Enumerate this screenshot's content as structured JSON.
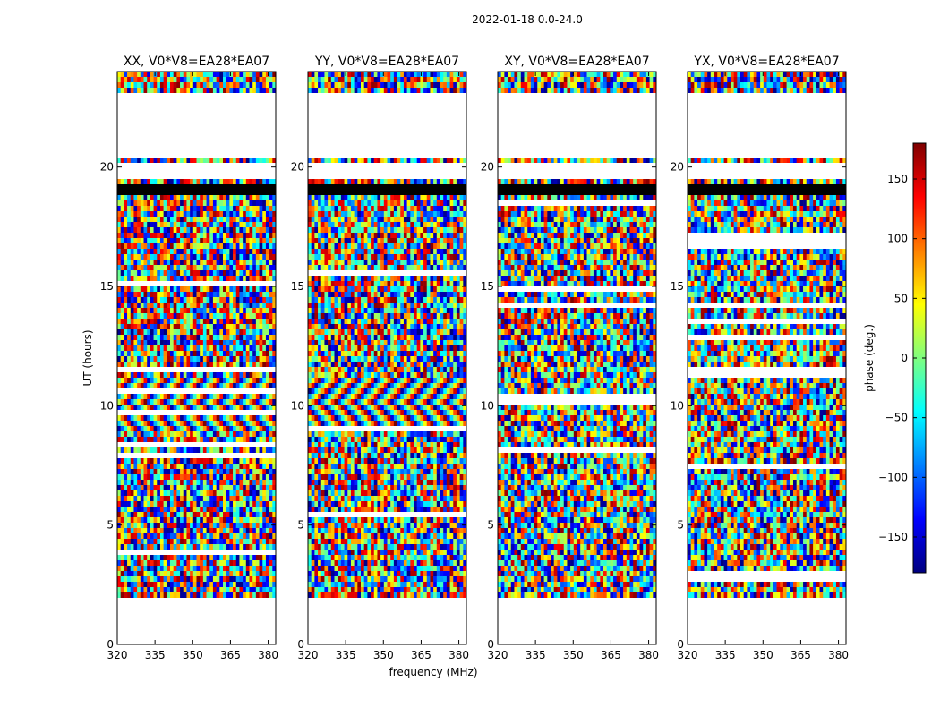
{
  "figure_title": "2022-01-18 0.0-24.0",
  "chart_data": {
    "type": "heatmap",
    "suptitle": "2022-01-18 0.0-24.0",
    "xlabel": "frequency (MHz)",
    "ylabel": "UT (hours)",
    "xlim": [
      320,
      383
    ],
    "ylim": [
      0,
      24
    ],
    "xticks": [
      320,
      335,
      350,
      365,
      380
    ],
    "yticks": [
      0,
      5,
      10,
      15,
      20
    ],
    "panels": [
      {
        "title": "XX, V0*V8=EA28*EA07",
        "polarization": "XX"
      },
      {
        "title": "YY, V0*V8=EA28*EA07",
        "polarization": "YY"
      },
      {
        "title": "XY, V0*V8=EA28*EA07",
        "polarization": "XY"
      },
      {
        "title": "YX, V0*V8=EA28*EA07",
        "polarization": "YX"
      }
    ],
    "data_span_hours": [
      2.0,
      24.0
    ],
    "empty_ranges_hours": [
      [
        0.0,
        2.0
      ],
      [
        20.6,
        23.3
      ],
      [
        19.5,
        20.3
      ]
    ],
    "flagged_black_bands_hours": [
      [
        18.9,
        19.4
      ]
    ],
    "colorbar": {
      "label": "phase (deg.)",
      "range": [
        -180,
        180
      ],
      "ticks": [
        -150,
        -100,
        -50,
        0,
        50,
        100,
        150
      ],
      "colormap": "jet"
    }
  }
}
